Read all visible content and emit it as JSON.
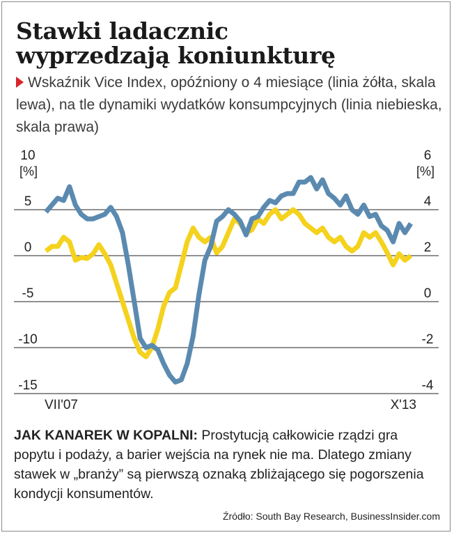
{
  "title_line1": "Stawki ladacznic",
  "title_line2": "wyprzedzają koniunkturę",
  "subtitle": "Wskaźnik Vice Index, opóźniony o 4 miesiące (linia żółta, skala lewa), na tle dynamiki wydatków konsumpcyjnych (linia niebieska, skala prawa)",
  "colors": {
    "vice_index": "#f4d21d",
    "consumer_spending": "#5b8ab0",
    "marker": "#d8262b",
    "grid": "#222222"
  },
  "chart_data": {
    "type": "line",
    "left_axis": {
      "ylim": [
        -15,
        10
      ],
      "ticks": [
        "10",
        "5",
        "0",
        "-5",
        "-10",
        "-15"
      ],
      "unit": "[%]"
    },
    "right_axis": {
      "ylim": [
        -4,
        6
      ],
      "ticks": [
        "6",
        "4",
        "2",
        "0",
        "-2",
        "-4"
      ],
      "unit": "[%]"
    },
    "x_labels": [
      "VII'07",
      "X'13"
    ],
    "grid": true,
    "series": [
      {
        "axis": "left",
        "values": [
          0.5,
          1.0,
          1.0,
          2.0,
          1.5,
          -0.5,
          -0.2,
          -0.3,
          0.2,
          1.2,
          0.2,
          -1.0,
          -3.0,
          -5.0,
          -7.0,
          -9.0,
          -10.5,
          -11.0,
          -10.0,
          -8.0,
          -5.5,
          -4.0,
          -3.5,
          -1.0,
          1.5,
          3.0,
          2.0,
          1.5,
          2.0,
          0.3,
          1.0,
          2.5,
          4.0,
          3.5,
          2.5,
          2.8,
          4.0,
          3.5,
          4.5,
          5.0,
          4.0,
          4.5,
          5.0,
          4.5,
          3.5,
          3.0,
          2.5,
          3.0,
          2.0,
          1.5,
          2.0,
          1.0,
          0.5,
          1.0,
          2.5,
          2.0,
          2.5,
          1.5,
          0.3,
          -1.0,
          0.2,
          -0.5,
          0.0
        ]
      },
      {
        "axis": "right",
        "values": [
          3.9,
          4.2,
          4.5,
          4.4,
          5.0,
          4.2,
          3.8,
          3.6,
          3.6,
          3.7,
          3.8,
          4.1,
          3.7,
          3.0,
          1.6,
          0.0,
          -1.6,
          -2.0,
          -1.9,
          -2.1,
          -2.7,
          -3.2,
          -3.5,
          -3.4,
          -2.7,
          -1.5,
          0.3,
          1.8,
          2.4,
          3.5,
          3.7,
          4.0,
          3.8,
          3.5,
          2.9,
          3.6,
          3.7,
          4.1,
          4.4,
          4.3,
          4.6,
          4.7,
          4.7,
          5.2,
          5.2,
          5.4,
          4.9,
          5.3,
          4.7,
          4.5,
          4.2,
          4.6,
          4.0,
          3.8,
          4.2,
          3.7,
          3.8,
          3.3,
          3.1,
          2.6,
          3.4,
          3.0,
          3.4
        ]
      }
    ]
  },
  "description_lead": "JAK KANAREK W KOPALNI:",
  "description_text": " Prostytucją całkowicie rządzi gra popytu i podaży, a barier wejścia na rynek nie ma. Dlatego zmiany stawek w „branży” są pierwszą oznaką zbliżającego się pogorszenia kondycji konsumentów.",
  "source": "Źródło: South Bay Research, BusinessInsider.com"
}
